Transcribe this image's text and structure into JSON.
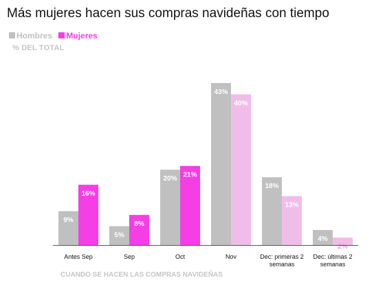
{
  "chart_data": {
    "type": "bar",
    "title": "Más mujeres hacen sus compras navideñas con tiempo",
    "subtitle": "% DEL TOTAL",
    "xlabel": "CUANDO SE HACEN LAS COMPRAS NAVIDEÑAS",
    "ylabel": "",
    "ylim": [
      0,
      47
    ],
    "grid": false,
    "legend_position": "top-left",
    "categories": [
      [
        "Antes Sep"
      ],
      [
        "Sep"
      ],
      [
        "Oct"
      ],
      [
        "Nov"
      ],
      [
        "Dec: primeras 2",
        "semanas"
      ],
      [
        "Dec: últimas 2",
        "semanas"
      ]
    ],
    "series": [
      {
        "name": "Hombres",
        "color": "#c0c0c0",
        "values": [
          9,
          5,
          20,
          43,
          18,
          4
        ],
        "labels": [
          "9%",
          "5%",
          "20%",
          "43%",
          "18%",
          "4%"
        ],
        "label_colors": [
          "#ffffff",
          "#ffffff",
          "#ffffff",
          "#ffffff",
          "#ffffff",
          "#ffffff"
        ]
      },
      {
        "name": "Mujeres",
        "color": "#f53ee6",
        "values": [
          16,
          8,
          21,
          40,
          13,
          2
        ],
        "labels": [
          "16%",
          "8%",
          "21%",
          "40%",
          "13%",
          "2%"
        ],
        "bar_colors": [
          "#f53ee6",
          "#f53ee6",
          "#f53ee6",
          "#f0bde9",
          "#f0bde9",
          "#f0bde9"
        ],
        "label_colors": [
          "#ffffff",
          "#ffffff",
          "#ffffff",
          "#ffffff",
          "#ffffff",
          "#f08fe4"
        ]
      }
    ]
  }
}
